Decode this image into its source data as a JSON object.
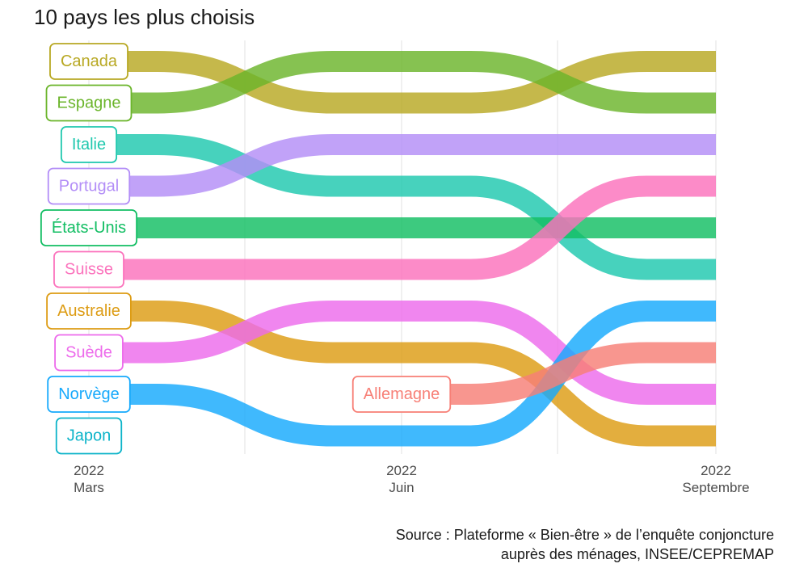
{
  "title": "10 pays les plus choisis",
  "source": {
    "line1": "Source : Plateforme « Bien-être » de l’enquête conjoncture",
    "line2": "auprès des ménages, INSEE/CEPREMAP"
  },
  "chart_data": {
    "type": "line",
    "subtype": "bump",
    "title": "10 pays les plus choisis",
    "x_ticks": [
      {
        "year": "2022",
        "month": "Mars"
      },
      {
        "year": "2022",
        "month": "Juin"
      },
      {
        "year": "2022",
        "month": "Septembre"
      }
    ],
    "x": [
      "2022 Mars",
      "2022 Juin",
      "2022 Septembre"
    ],
    "y_reversed": true,
    "grid": true,
    "series": [
      {
        "name": "Canada",
        "color": "#B8A823",
        "values": [
          1,
          2,
          1
        ]
      },
      {
        "name": "Espagne",
        "color": "#6BB52B",
        "values": [
          2,
          1,
          2
        ]
      },
      {
        "name": "Italie",
        "color": "#1FC8AE",
        "values": [
          3,
          4,
          6
        ]
      },
      {
        "name": "Portugal",
        "color": "#B38EF7",
        "values": [
          4,
          3,
          3
        ]
      },
      {
        "name": "États-Unis",
        "color": "#12BE63",
        "values": [
          5,
          5,
          5
        ]
      },
      {
        "name": "Suisse",
        "color": "#FB72BC",
        "values": [
          6,
          6,
          4
        ]
      },
      {
        "name": "Australie",
        "color": "#DD9C14",
        "values": [
          7,
          8,
          10
        ]
      },
      {
        "name": "Suède",
        "color": "#ED6BEB",
        "values": [
          8,
          7,
          9
        ]
      },
      {
        "name": "Norvège",
        "color": "#16A9FC",
        "values": [
          9,
          10,
          7
        ]
      },
      {
        "name": "Japon",
        "color": "#0CB4C9",
        "values": [
          10,
          null,
          null
        ]
      },
      {
        "name": "Allemagne",
        "color": "#F77F76",
        "values": [
          null,
          9,
          8
        ]
      }
    ]
  }
}
